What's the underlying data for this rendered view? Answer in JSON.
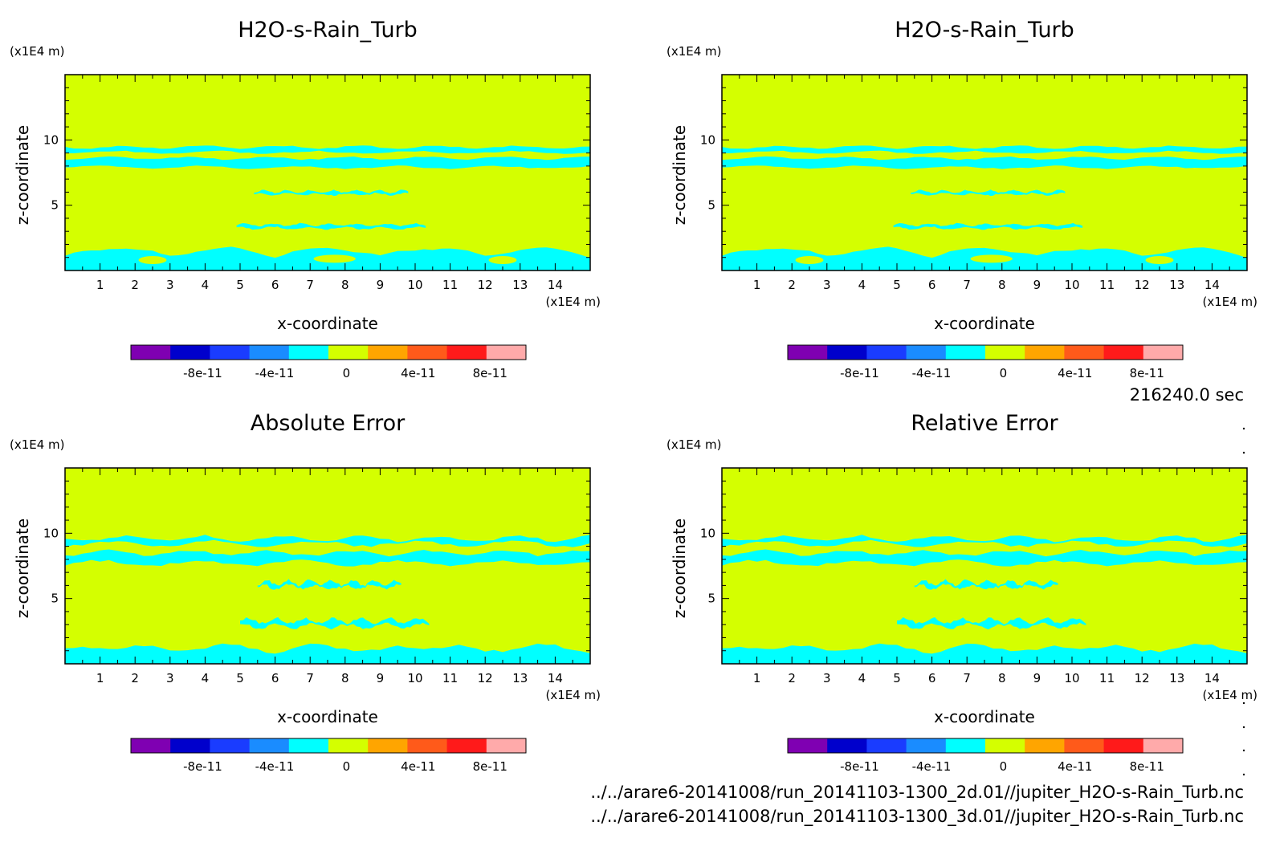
{
  "figure": {
    "time_label": "216240.0 sec",
    "file_lines": [
      "../../arare6-20141008/run_20141103-1300_2d.01//jupiter_H2O-s-Rain_Turb.nc",
      "../../arare6-20141008/run_20141103-1300_3d.01//jupiter_H2O-s-Rain_Turb.nc"
    ]
  },
  "colorbar": {
    "colors": [
      "#7f00b2",
      "#0000cc",
      "#1a3cff",
      "#1a8cff",
      "#00ffff",
      "#d4ff00",
      "#ffa500",
      "#ff5a1a",
      "#ff1a1a",
      "#ffaaaa"
    ],
    "boundaries": [
      -1.2e-10,
      -1e-10,
      -8e-11,
      -6e-11,
      -4e-11,
      -2e-11,
      0,
      2e-11,
      4e-11,
      6e-11,
      8e-11,
      1e-10
    ],
    "tick_labels": [
      "-8e-11",
      "-4e-11",
      "0",
      "4e-11",
      "8e-11"
    ]
  },
  "chart_data": [
    {
      "type": "heatmap",
      "title": "H2O-s-Rain_Turb",
      "xlabel": "x-coordinate",
      "ylabel": "z-coordinate",
      "x_unit": "(x1E4 m)",
      "y_unit": "(x1E4 m)",
      "xlim": [
        0,
        15
      ],
      "ylim": [
        0,
        15
      ],
      "x_ticks": [
        1,
        2,
        3,
        4,
        5,
        6,
        7,
        8,
        9,
        10,
        11,
        12,
        13,
        14
      ],
      "y_ticks": [
        5,
        10
      ],
      "background_value": "0 to 2e-11",
      "background_color": "#d4ff00",
      "contour_color": "#00ffff",
      "contour_value": "-2e-11 to 0",
      "bands_z": [
        {
          "z_low": 9.05,
          "z_high": 9.45,
          "x_from": 0,
          "x_to": 15
        },
        {
          "z_low": 7.9,
          "z_high": 8.6,
          "x_from": 0,
          "x_to": 15
        },
        {
          "z_low": 5.85,
          "z_high": 6.05,
          "x_from": 5.4,
          "x_to": 9.8
        },
        {
          "z_low": 3.25,
          "z_high": 3.5,
          "x_from": 4.9,
          "x_to": 10.3
        },
        {
          "z_low": 0,
          "z_high": 1.7,
          "x_from": 0,
          "x_to": 15
        }
      ]
    },
    {
      "type": "heatmap",
      "title": "H2O-s-Rain_Turb",
      "xlabel": "x-coordinate",
      "ylabel": "z-coordinate",
      "x_unit": "(x1E4 m)",
      "y_unit": "(x1E4 m)",
      "xlim": [
        0,
        15
      ],
      "ylim": [
        0,
        15
      ],
      "x_ticks": [
        1,
        2,
        3,
        4,
        5,
        6,
        7,
        8,
        9,
        10,
        11,
        12,
        13,
        14
      ],
      "y_ticks": [
        5,
        10
      ],
      "background_value": "0 to 2e-11",
      "background_color": "#d4ff00",
      "contour_color": "#00ffff",
      "contour_value": "-2e-11 to 0",
      "bands_z": [
        {
          "z_low": 9.05,
          "z_high": 9.45,
          "x_from": 0,
          "x_to": 15
        },
        {
          "z_low": 7.9,
          "z_high": 8.6,
          "x_from": 0,
          "x_to": 15
        },
        {
          "z_low": 5.85,
          "z_high": 6.05,
          "x_from": 5.4,
          "x_to": 9.8
        },
        {
          "z_low": 3.25,
          "z_high": 3.5,
          "x_from": 4.9,
          "x_to": 10.3
        },
        {
          "z_low": 0,
          "z_high": 1.7,
          "x_from": 0,
          "x_to": 15
        }
      ]
    },
    {
      "type": "heatmap",
      "title": "Absolute Error",
      "xlabel": "x-coordinate",
      "ylabel": "z-coordinate",
      "x_unit": "(x1E4 m)",
      "y_unit": "(x1E4 m)",
      "xlim": [
        0,
        15
      ],
      "ylim": [
        0,
        15
      ],
      "x_ticks": [
        1,
        2,
        3,
        4,
        5,
        6,
        7,
        8,
        9,
        10,
        11,
        12,
        13,
        14
      ],
      "y_ticks": [
        5,
        10
      ],
      "background_value": "0 to 2e-11",
      "background_color": "#d4ff00",
      "contour_color": "#00ffff",
      "contour_value": "-2e-11 to 0",
      "bands_z": [
        {
          "z_low": 9.2,
          "z_high": 9.6,
          "x_from": 0,
          "x_to": 15
        },
        {
          "z_low": 7.7,
          "z_high": 8.5,
          "x_from": 0,
          "x_to": 15
        },
        {
          "z_low": 5.9,
          "z_high": 6.2,
          "x_from": 5.5,
          "x_to": 9.6
        },
        {
          "z_low": 2.9,
          "z_high": 3.3,
          "x_from": 5.0,
          "x_to": 10.4
        },
        {
          "z_low": 0,
          "z_high": 1.6,
          "x_from": 0,
          "x_to": 15
        }
      ]
    },
    {
      "type": "heatmap",
      "title": "Relative Error",
      "xlabel": "x-coordinate",
      "ylabel": "z-coordinate",
      "x_unit": "(x1E4 m)",
      "y_unit": "(x1E4 m)",
      "xlim": [
        0,
        15
      ],
      "ylim": [
        0,
        15
      ],
      "x_ticks": [
        1,
        2,
        3,
        4,
        5,
        6,
        7,
        8,
        9,
        10,
        11,
        12,
        13,
        14
      ],
      "y_ticks": [
        5,
        10
      ],
      "background_value": "0 to 2e-11",
      "background_color": "#d4ff00",
      "contour_color": "#00ffff",
      "contour_value": "-2e-11 to 0",
      "bands_z": [
        {
          "z_low": 9.2,
          "z_high": 9.6,
          "x_from": 0,
          "x_to": 15
        },
        {
          "z_low": 7.7,
          "z_high": 8.5,
          "x_from": 0,
          "x_to": 15
        },
        {
          "z_low": 5.9,
          "z_high": 6.2,
          "x_from": 5.5,
          "x_to": 9.6
        },
        {
          "z_low": 2.9,
          "z_high": 3.3,
          "x_from": 5.0,
          "x_to": 10.4
        },
        {
          "z_low": 0,
          "z_high": 1.6,
          "x_from": 0,
          "x_to": 15
        }
      ]
    }
  ]
}
